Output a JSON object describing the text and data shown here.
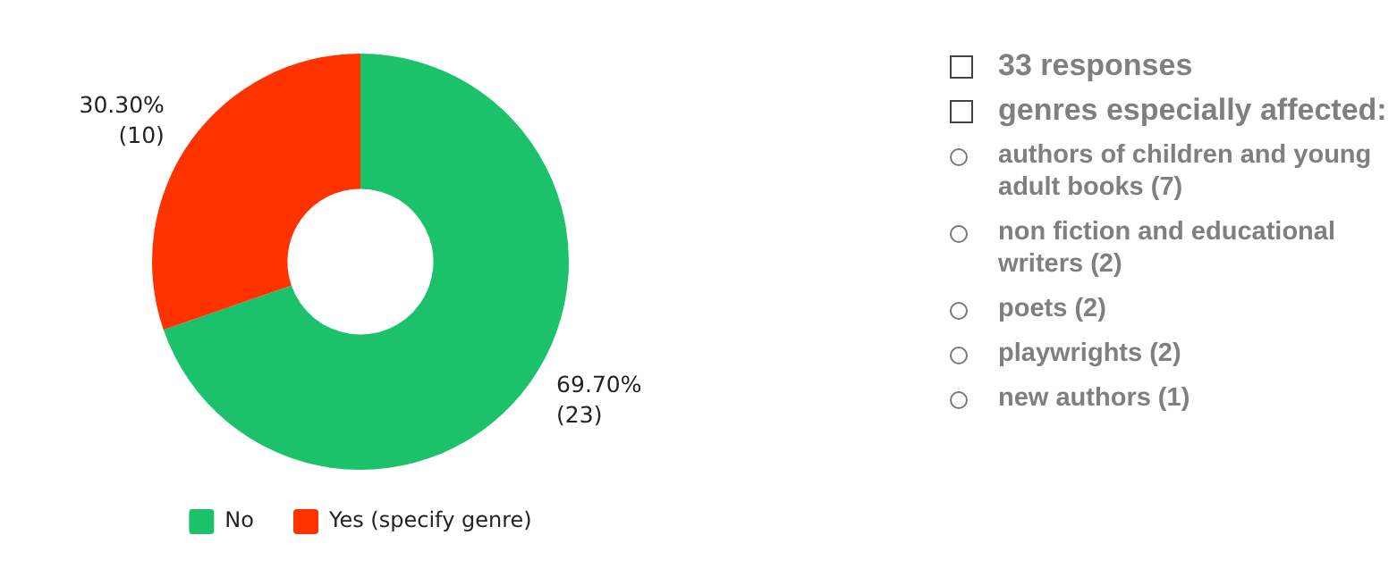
{
  "chart_data": [
    {
      "type": "donut",
      "categories": [
        "No",
        "Yes (specify genre)"
      ],
      "values": [
        23,
        10
      ],
      "colors": [
        "#1cc16b",
        "#ff3300"
      ],
      "value_labels": [
        "69.70%\n(23)",
        "30.30%\n(10)"
      ],
      "legend": "bottom"
    },
    {
      "type": "other",
      "annotations": [
        "33 responses",
        "genres especially affected:",
        "authors of children and young adult books (7)",
        "non fiction and educational writers (2)",
        "poets (2)",
        "playwrights (2)",
        "new authors (1)"
      ]
    }
  ]
}
